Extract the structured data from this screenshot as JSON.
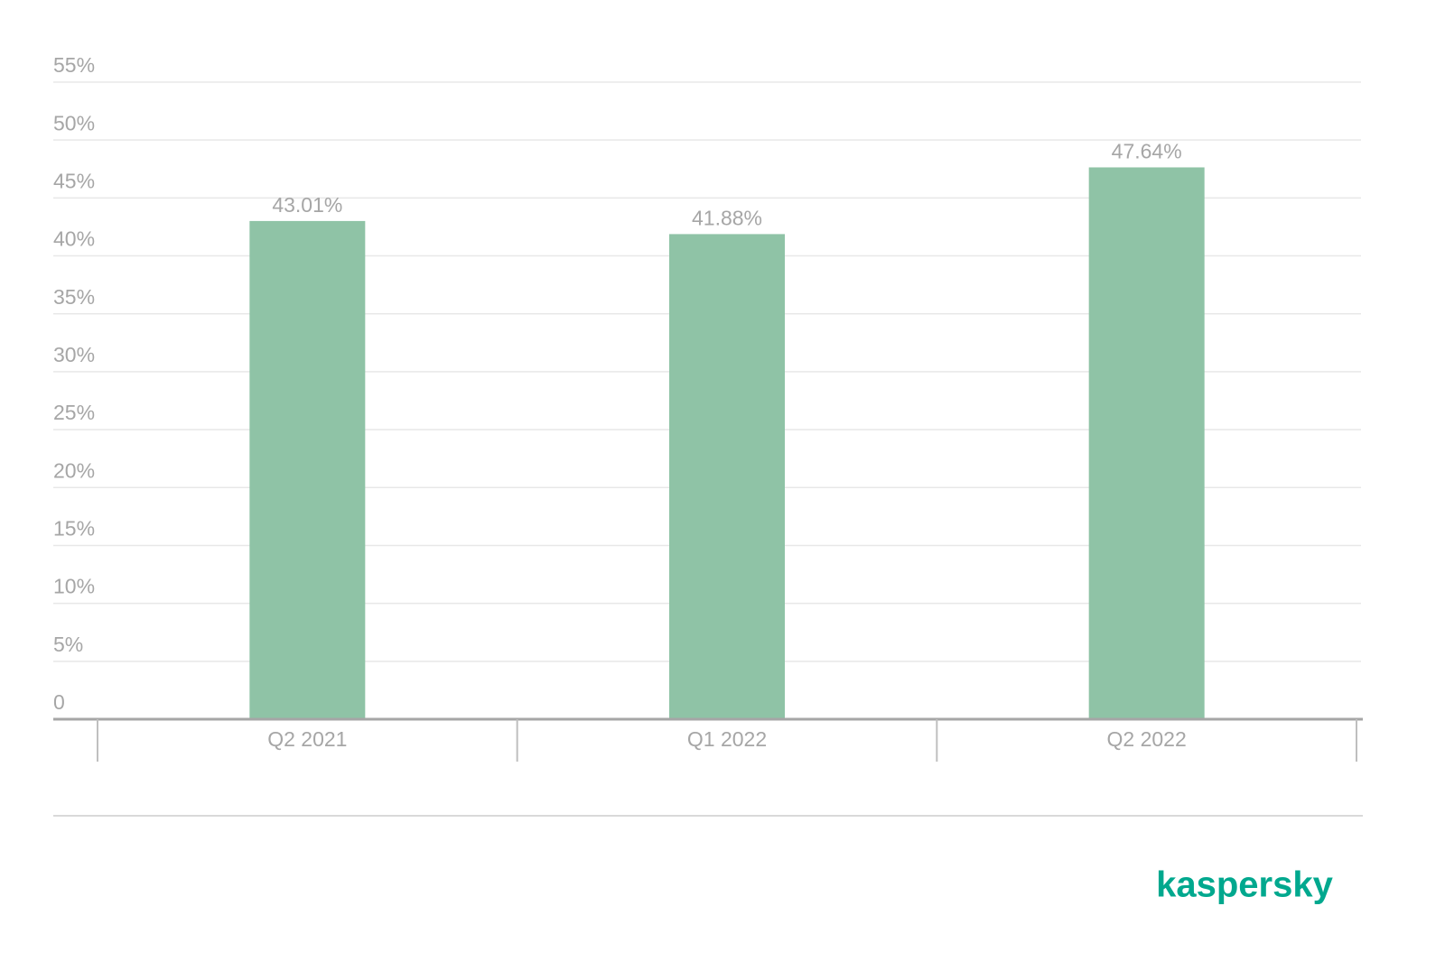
{
  "chart_data": {
    "type": "bar",
    "categories": [
      "Q2 2021",
      "Q1 2022",
      "Q2 2022"
    ],
    "values": [
      43.01,
      41.88,
      47.64
    ],
    "value_labels": [
      "43.01%",
      "41.88%",
      "47.64%"
    ],
    "color": "#8fc3a6",
    "ylim": [
      0,
      55
    ],
    "yticks": [
      0,
      {
        "value": 5,
        "label": "5%"
      },
      {
        "value": 10,
        "label": "10%"
      },
      {
        "value": 15,
        "label": "15%"
      },
      {
        "value": 20,
        "label": "20%"
      },
      {
        "value": 25,
        "label": "25%"
      },
      {
        "value": 30,
        "label": "30%"
      },
      {
        "value": 35,
        "label": "35%"
      },
      {
        "value": 40,
        "label": "40%"
      },
      {
        "value": 45,
        "label": "45%"
      },
      {
        "value": 50,
        "label": "50%"
      },
      {
        "value": 55,
        "label": "55%"
      }
    ],
    "grid": true
  },
  "logo": "kaspersky"
}
